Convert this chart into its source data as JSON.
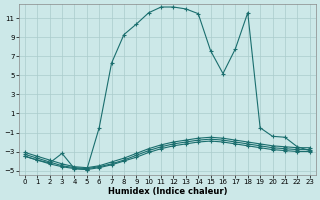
{
  "xlabel": "Humidex (Indice chaleur)",
  "bg_color": "#cce8e8",
  "grid_color": "#aacccc",
  "line_color": "#1a6e6e",
  "xlim": [
    -0.5,
    23.5
  ],
  "ylim": [
    -5.5,
    12.5
  ],
  "yticks": [
    -5,
    -3,
    -1,
    1,
    3,
    5,
    7,
    9,
    11
  ],
  "xticks": [
    0,
    1,
    2,
    3,
    4,
    5,
    6,
    7,
    8,
    9,
    10,
    11,
    12,
    13,
    14,
    15,
    16,
    17,
    18,
    19,
    20,
    21,
    22,
    23
  ],
  "main_x": [
    0,
    1,
    2,
    3,
    4,
    5,
    6,
    7,
    8,
    9,
    10,
    11,
    12,
    13,
    14,
    15,
    16,
    17,
    18,
    19,
    20,
    21,
    22,
    23
  ],
  "main_y": [
    -3.5,
    -3.9,
    -4.2,
    -3.2,
    -4.8,
    -4.9,
    -0.5,
    6.3,
    9.3,
    10.4,
    11.6,
    12.2,
    12.2,
    12.0,
    11.5,
    7.6,
    5.2,
    7.8,
    11.6,
    -0.5,
    -1.4,
    -1.5,
    -2.5,
    -2.9
  ],
  "flat1_x": [
    0,
    1,
    2,
    3,
    4,
    5,
    6,
    7,
    8,
    9,
    10,
    11,
    12,
    13,
    14,
    15,
    16,
    17,
    18,
    19,
    20,
    21,
    22,
    23
  ],
  "flat1_y": [
    -3.5,
    -3.9,
    -4.3,
    -4.6,
    -4.8,
    -4.9,
    -4.7,
    -4.4,
    -4.0,
    -3.6,
    -3.1,
    -2.7,
    -2.4,
    -2.2,
    -2.0,
    -1.9,
    -2.0,
    -2.2,
    -2.4,
    -2.6,
    -2.8,
    -2.9,
    -3.0,
    -3.0
  ],
  "flat2_x": [
    0,
    1,
    2,
    3,
    4,
    5,
    6,
    7,
    8,
    9,
    10,
    11,
    12,
    13,
    14,
    15,
    16,
    17,
    18,
    19,
    20,
    21,
    22,
    23
  ],
  "flat2_y": [
    -3.3,
    -3.7,
    -4.1,
    -4.5,
    -4.7,
    -4.8,
    -4.6,
    -4.3,
    -3.9,
    -3.4,
    -2.9,
    -2.5,
    -2.2,
    -2.0,
    -1.8,
    -1.7,
    -1.8,
    -2.0,
    -2.2,
    -2.4,
    -2.6,
    -2.7,
    -2.8,
    -2.8
  ],
  "flat3_x": [
    0,
    1,
    2,
    3,
    4,
    5,
    6,
    7,
    8,
    9,
    10,
    11,
    12,
    13,
    14,
    15,
    16,
    17,
    18,
    19,
    20,
    21,
    22,
    23
  ],
  "flat3_y": [
    -3.1,
    -3.5,
    -3.9,
    -4.3,
    -4.6,
    -4.7,
    -4.5,
    -4.1,
    -3.7,
    -3.2,
    -2.7,
    -2.3,
    -2.0,
    -1.8,
    -1.6,
    -1.5,
    -1.6,
    -1.8,
    -2.0,
    -2.2,
    -2.4,
    -2.5,
    -2.6,
    -2.6
  ]
}
